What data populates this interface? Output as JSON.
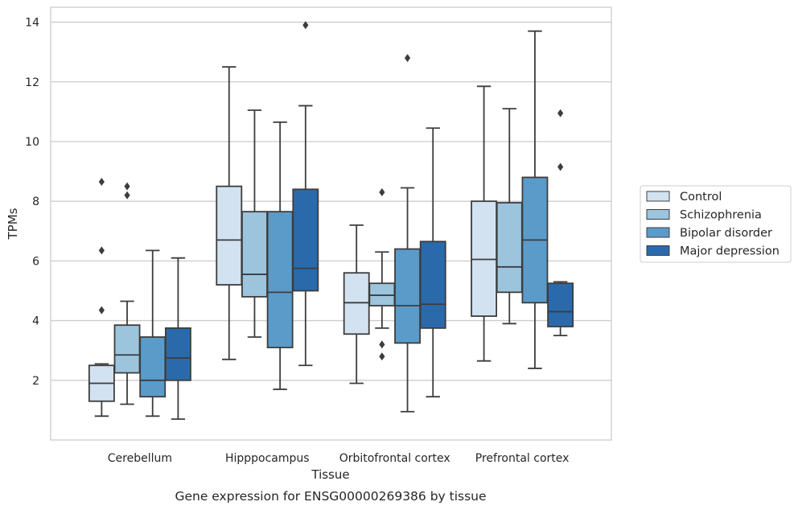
{
  "chart_data": {
    "type": "box",
    "caption": "Gene expression for ENSG00000269386 by tissue",
    "xlabel": "Tissue",
    "ylabel": "TPMs",
    "ylim": [
      0,
      14.5
    ],
    "yticks": [
      2,
      4,
      6,
      8,
      10,
      12,
      14
    ],
    "grid": true,
    "legend_position": "right",
    "categories": [
      "Cerebellum",
      "Hipppocampus",
      "Orbitofrontal cortex",
      "Prefrontal cortex"
    ],
    "series": [
      {
        "name": "Control",
        "color": "#d2e2f1",
        "boxes": [
          {
            "whislo": 0.8,
            "q1": 1.3,
            "med": 1.9,
            "q3": 2.5,
            "whishi": 2.55,
            "fliers": []
          },
          {
            "whislo": 2.7,
            "q1": 5.2,
            "med": 6.7,
            "q3": 8.5,
            "whishi": 12.5,
            "fliers": []
          },
          {
            "whislo": 1.9,
            "q1": 3.55,
            "med": 4.6,
            "q3": 5.6,
            "whishi": 7.2,
            "fliers": []
          },
          {
            "whislo": 2.65,
            "q1": 4.15,
            "med": 6.05,
            "q3": 8.0,
            "whishi": 11.85,
            "fliers": []
          }
        ]
      },
      {
        "name": "Schizophrenia",
        "color": "#9cc4dd",
        "boxes": [
          {
            "whislo": 1.2,
            "q1": 2.25,
            "med": 2.85,
            "q3": 3.85,
            "whishi": 4.65,
            "fliers": [
              8.5,
              8.2
            ]
          },
          {
            "whislo": 3.45,
            "q1": 4.8,
            "med": 5.55,
            "q3": 7.65,
            "whishi": 11.05,
            "fliers": []
          },
          {
            "whislo": 3.75,
            "q1": 4.5,
            "med": 4.85,
            "q3": 5.25,
            "whishi": 6.3,
            "fliers": [
              8.3,
              3.2,
              2.8
            ]
          },
          {
            "whislo": 3.9,
            "q1": 4.95,
            "med": 5.8,
            "q3": 7.95,
            "whishi": 11.1,
            "fliers": []
          }
        ]
      },
      {
        "name": "Bipolar disorder",
        "color": "#5b9bc9",
        "boxes": [
          {
            "whislo": 0.8,
            "q1": 1.45,
            "med": 2.0,
            "q3": 3.45,
            "whishi": 6.35,
            "fliers": []
          },
          {
            "whislo": 1.7,
            "q1": 3.1,
            "med": 4.95,
            "q3": 7.65,
            "whishi": 10.65,
            "fliers": []
          },
          {
            "whislo": 0.95,
            "q1": 3.25,
            "med": 4.5,
            "q3": 6.4,
            "whishi": 8.45,
            "fliers": [
              12.8
            ]
          },
          {
            "whislo": 2.4,
            "q1": 4.6,
            "med": 6.7,
            "q3": 8.8,
            "whishi": 13.7,
            "fliers": []
          }
        ]
      },
      {
        "name": "Major depression",
        "color": "#2a6aab",
        "boxes": [
          {
            "whislo": 0.7,
            "q1": 2.0,
            "med": 2.75,
            "q3": 3.75,
            "whishi": 6.1,
            "fliers": []
          },
          {
            "whislo": 2.5,
            "q1": 5.0,
            "med": 5.75,
            "q3": 8.4,
            "whishi": 11.2,
            "fliers": [
              13.9
            ]
          },
          {
            "whislo": 1.45,
            "q1": 3.75,
            "med": 4.55,
            "q3": 6.65,
            "whishi": 10.45,
            "fliers": []
          },
          {
            "whislo": 3.5,
            "q1": 3.8,
            "med": 4.3,
            "q3": 5.25,
            "whishi": 5.3,
            "fliers": [
              10.95,
              9.15
            ]
          }
        ]
      }
    ],
    "extra_fliers_cerebellum_control": [
      8.65,
      6.35,
      4.35
    ]
  }
}
